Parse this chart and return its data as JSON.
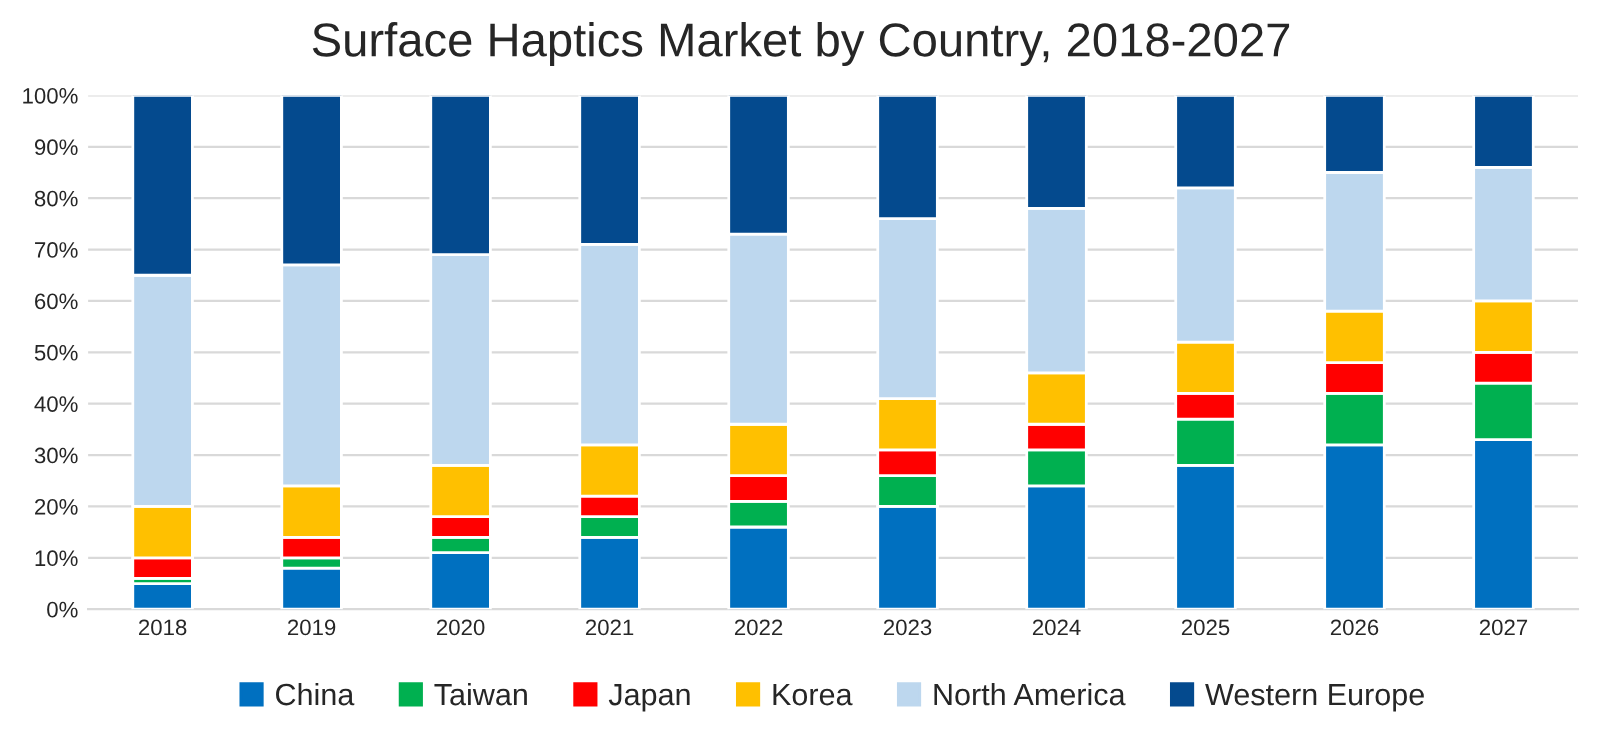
{
  "chart_data": {
    "type": "bar",
    "title": "Surface Haptics Market by Country, 2018-2027",
    "stacked": true,
    "categories": [
      "2018",
      "2019",
      "2020",
      "2021",
      "2022",
      "2023",
      "2024",
      "2025",
      "2026",
      "2027"
    ],
    "series": [
      {
        "name": "China",
        "color": "#0070c0",
        "values": [
          5,
          8,
          11,
          14,
          16,
          20,
          24,
          28,
          32,
          33
        ]
      },
      {
        "name": "Taiwan",
        "color": "#00b050",
        "values": [
          1,
          2,
          3,
          4,
          5,
          6,
          7,
          9,
          10,
          11
        ]
      },
      {
        "name": "Japan",
        "color": "#ff0000",
        "values": [
          4,
          4,
          4,
          4,
          5,
          5,
          5,
          5,
          6,
          6
        ]
      },
      {
        "name": "Korea",
        "color": "#ffc000",
        "values": [
          10,
          10,
          10,
          10,
          10,
          10,
          10,
          10,
          10,
          10
        ]
      },
      {
        "name": "North America",
        "color": "#bdd7ee",
        "values": [
          45,
          43,
          41,
          39,
          37,
          35,
          32,
          30,
          27,
          26
        ]
      },
      {
        "name": "Western Europe",
        "color": "#044a8e",
        "values": [
          35,
          33,
          31,
          29,
          27,
          24,
          22,
          18,
          15,
          14
        ]
      }
    ],
    "ylim": [
      0,
      100
    ],
    "yticks": [
      {
        "value": 0,
        "label": "0%"
      },
      {
        "value": 10,
        "label": "10%"
      },
      {
        "value": 20,
        "label": "20%"
      },
      {
        "value": 30,
        "label": "30%"
      },
      {
        "value": 40,
        "label": "40%"
      },
      {
        "value": 50,
        "label": "50%"
      },
      {
        "value": 60,
        "label": "60%"
      },
      {
        "value": 70,
        "label": "70%"
      },
      {
        "value": 80,
        "label": "80%"
      },
      {
        "value": 90,
        "label": "90%"
      },
      {
        "value": 100,
        "label": "100%"
      }
    ],
    "grid": "y",
    "legend": "bottom"
  }
}
